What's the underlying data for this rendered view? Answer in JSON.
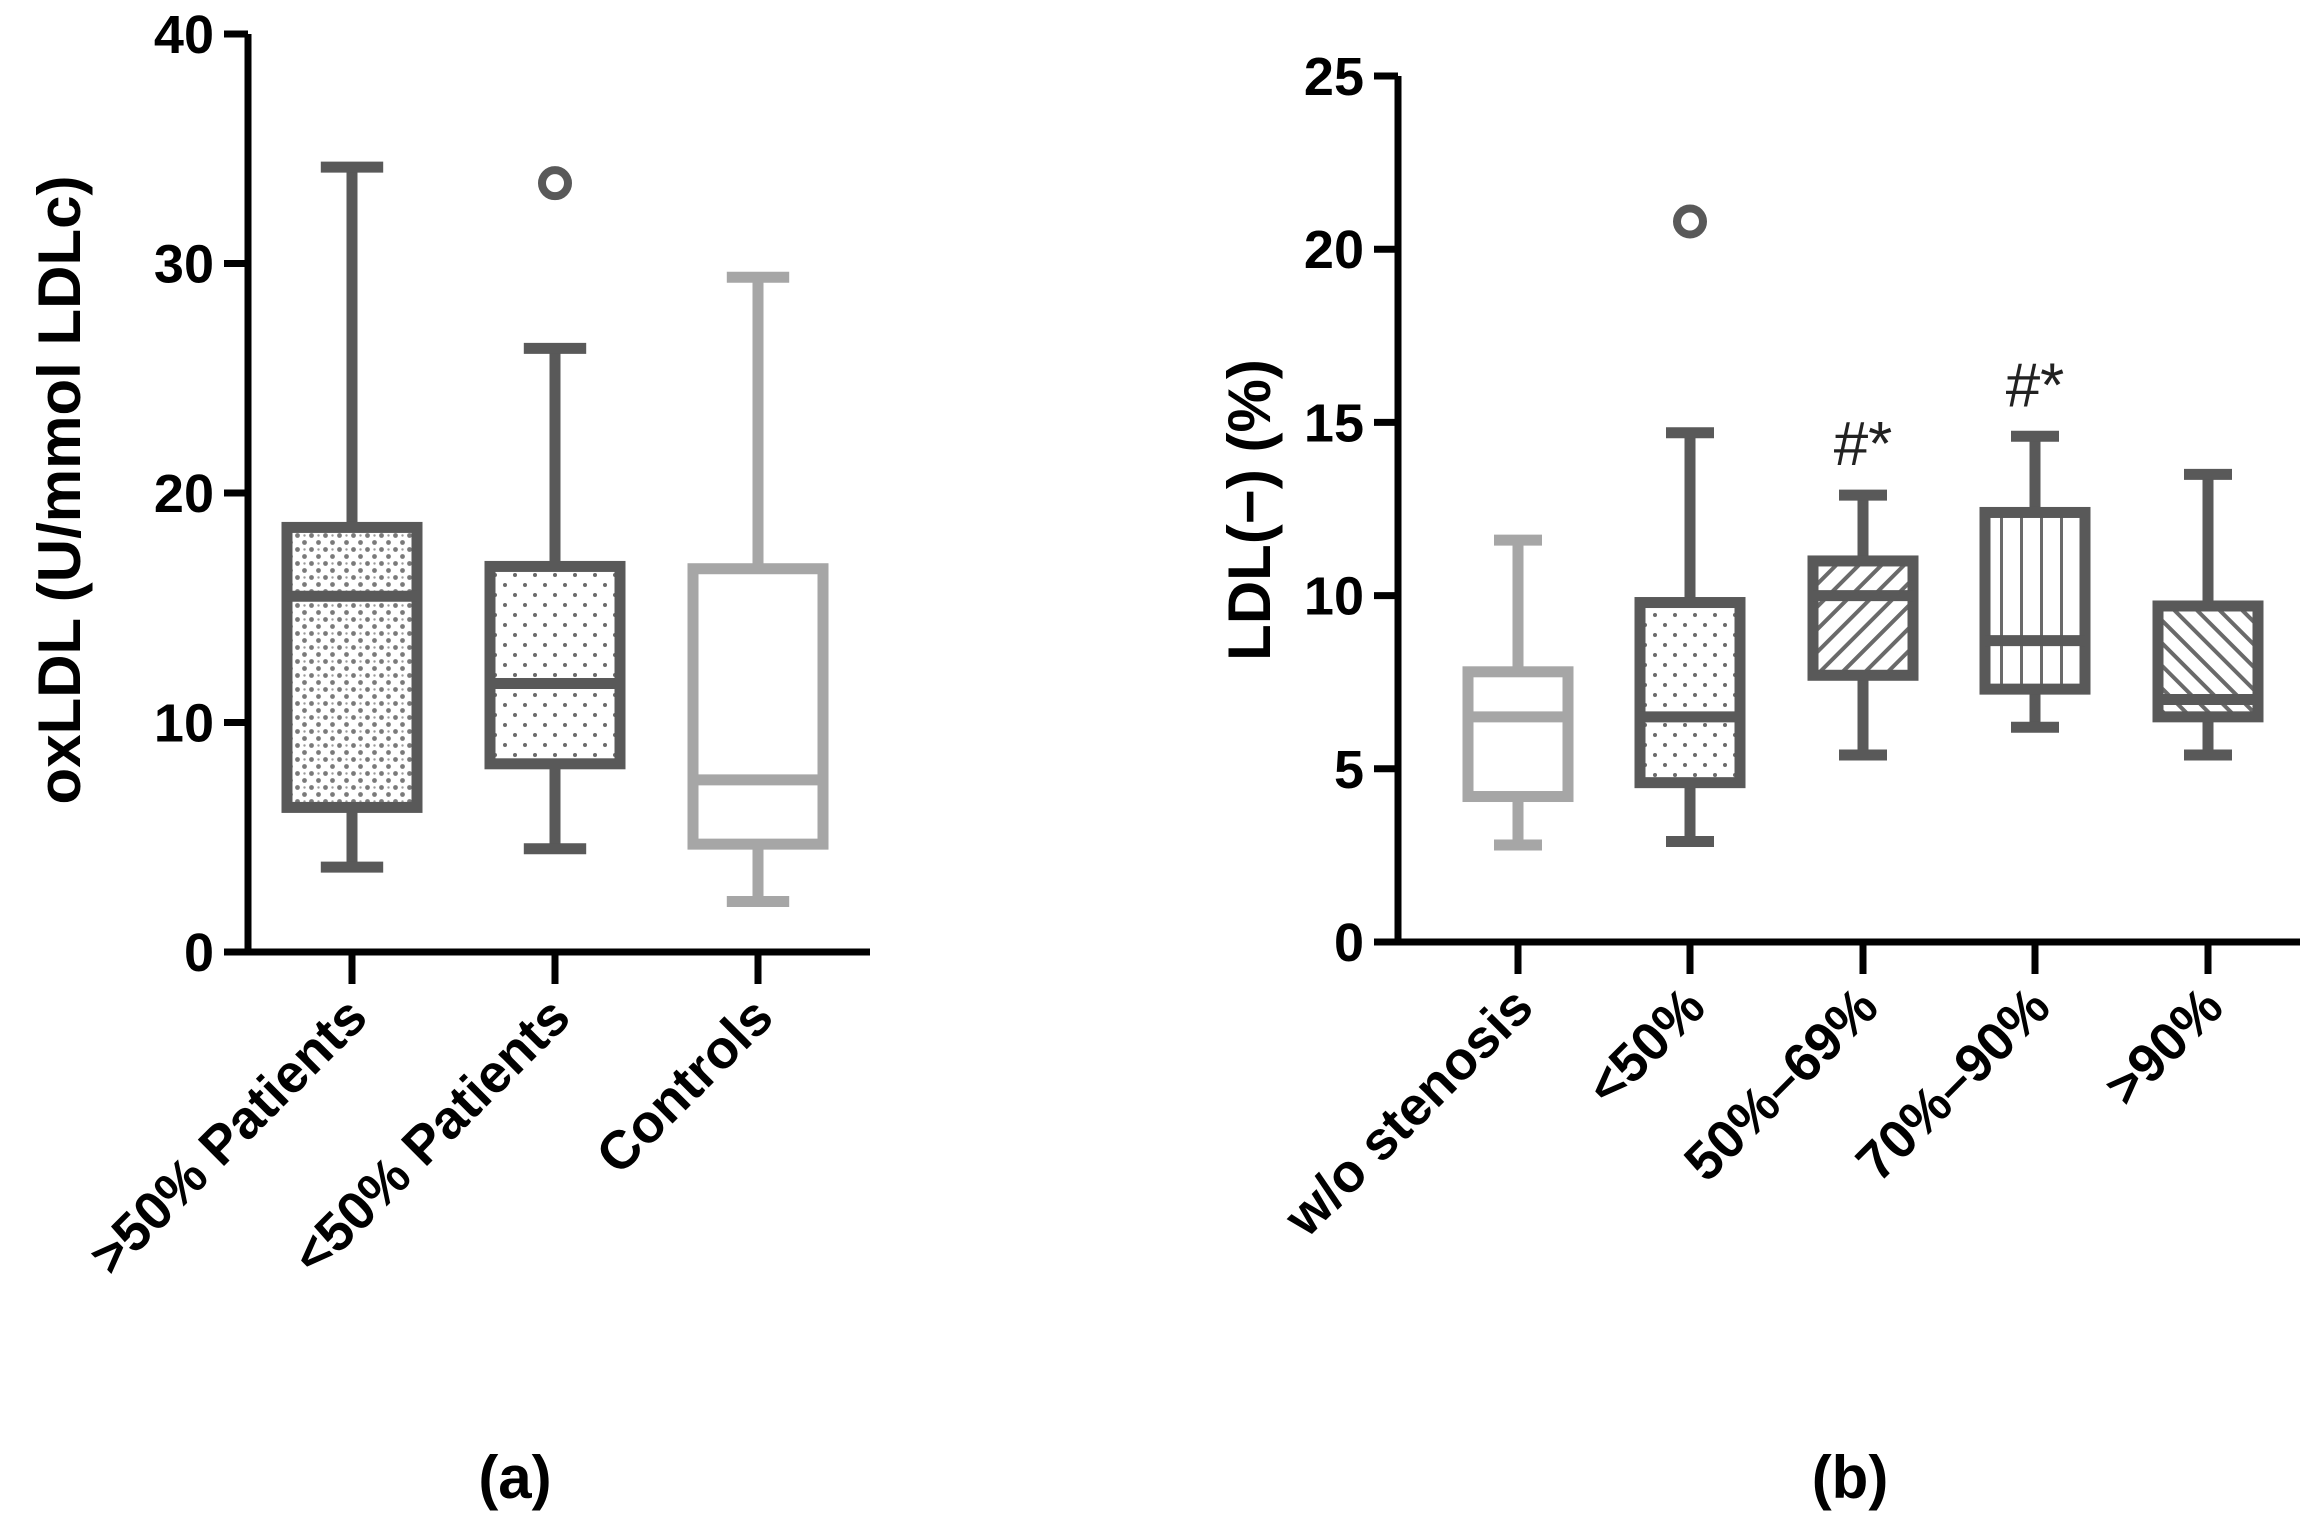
{
  "chart_data": [
    {
      "type": "box",
      "panel_label": "(a)",
      "title": "",
      "xlabel": "",
      "ylabel": "oxLDL (U/mmol LDLc)",
      "ylim": [
        0,
        40
      ],
      "yticks": [
        0,
        10,
        20,
        30,
        40
      ],
      "grid": false,
      "categories": [
        ">50% Patients",
        "<50% Patients",
        "Controls"
      ],
      "boxes": [
        {
          "name": ">50% Patients",
          "min": 3.7,
          "q1": 6.3,
          "median": 15.5,
          "q3": 18.5,
          "max": 34.2,
          "outliers": [],
          "color": "#595959",
          "fill": "dense-dots"
        },
        {
          "name": "<50% Patients",
          "min": 4.5,
          "q1": 8.2,
          "median": 11.7,
          "q3": 16.8,
          "max": 26.3,
          "outliers": [
            33.5
          ],
          "color": "#595959",
          "fill": "sparse-dots"
        },
        {
          "name": "Controls",
          "min": 2.2,
          "q1": 4.7,
          "median": 7.5,
          "q3": 16.7,
          "max": 29.4,
          "outliers": [],
          "color": "#a6a6a6",
          "fill": "none"
        }
      ]
    },
    {
      "type": "box",
      "panel_label": "(b)",
      "title": "",
      "xlabel": "",
      "ylabel": "LDL(−) (%)",
      "ylim": [
        0,
        25
      ],
      "yticks": [
        0,
        5,
        10,
        15,
        20,
        25
      ],
      "grid": false,
      "categories": [
        "w/o stenosis",
        "<50%",
        "50%–69%",
        "70%–90%",
        ">90%"
      ],
      "boxes": [
        {
          "name": "w/o stenosis",
          "min": 2.8,
          "q1": 4.2,
          "median": 6.5,
          "q3": 7.8,
          "max": 11.6,
          "outliers": [],
          "color": "#a6a6a6",
          "fill": "none",
          "annotation": ""
        },
        {
          "name": "<50%",
          "min": 2.9,
          "q1": 4.6,
          "median": 6.5,
          "q3": 9.8,
          "max": 14.7,
          "outliers": [
            20.8
          ],
          "color": "#595959",
          "fill": "sparse-dots",
          "annotation": ""
        },
        {
          "name": "50%–69%",
          "min": 5.4,
          "q1": 7.7,
          "median": 10.0,
          "q3": 11.0,
          "max": 12.9,
          "outliers": [],
          "color": "#595959",
          "fill": "diagonal-lines",
          "annotation": "#*"
        },
        {
          "name": "70%–90%",
          "min": 6.2,
          "q1": 7.3,
          "median": 8.7,
          "q3": 12.4,
          "max": 14.6,
          "outliers": [],
          "color": "#595959",
          "fill": "vertical-lines",
          "annotation": "#*"
        },
        {
          "name": ">90%",
          "min": 5.4,
          "q1": 6.5,
          "median": 7.0,
          "q3": 9.7,
          "max": 13.5,
          "outliers": [],
          "color": "#595959",
          "fill": "back-diagonal-lines",
          "annotation": ""
        }
      ]
    }
  ]
}
